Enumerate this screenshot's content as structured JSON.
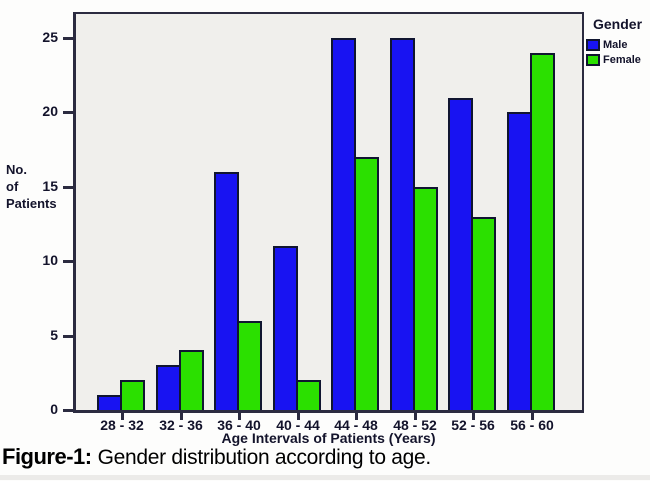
{
  "chart_data": {
    "type": "bar",
    "title": "",
    "categories": [
      "28 - 32",
      "32 - 36",
      "36 - 40",
      "40 - 44",
      "44 - 48",
      "48 - 52",
      "52 - 56",
      "56 - 60"
    ],
    "series": [
      {
        "name": "Male",
        "color": "#1813f2",
        "values": [
          1,
          3,
          16,
          11,
          25,
          25,
          21,
          20
        ]
      },
      {
        "name": "Female",
        "color": "#2be000",
        "values": [
          2,
          4,
          6,
          2,
          17,
          15,
          13,
          24
        ]
      }
    ],
    "xlabel": "Age Intervals of Patients (Years)",
    "ylabel": "No. of Patients",
    "ylabel_lines": [
      "No.",
      "of",
      "Patients"
    ],
    "yticks": [
      0,
      5,
      10,
      15,
      20,
      25
    ],
    "ylim": [
      0,
      26.5
    ],
    "grid": false,
    "legend_title": "Gender",
    "legend_position": "outside-top-right",
    "plot_bg": "#f0efec",
    "bar_border_color": "#101530",
    "axis_color": "#2b2b40",
    "text_color": "#13132b"
  },
  "caption": {
    "prefix": "Figure-1:",
    "text": "Gender distribution according to age."
  }
}
